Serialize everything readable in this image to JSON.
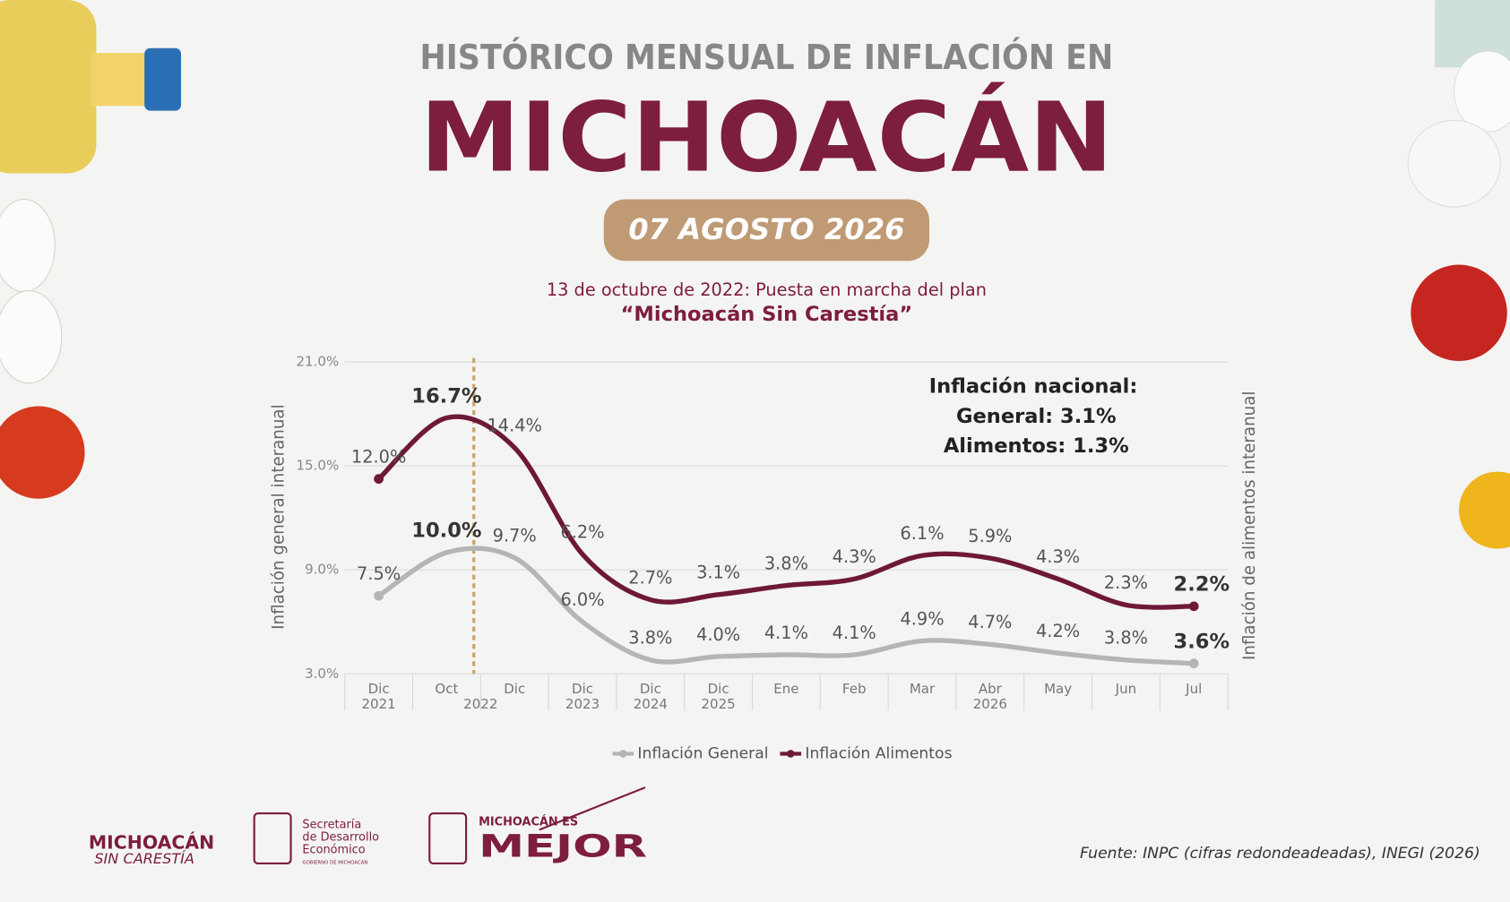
{
  "header": {
    "title": "HISTÓRICO MENSUAL DE INFLACIÓN EN",
    "state": "MICHOACÁN",
    "date": "07 AGOSTO 2026"
  },
  "chart_data": {
    "type": "line",
    "subtitle": "13 de octubre de 2022: Puesta en marcha del plan",
    "subtitle_plan": "“Michoacán Sin Carestía”",
    "ylabel": "Inflación general interanual",
    "y2label": "Inflación de alimentos interanual",
    "categories": [
      "Dic",
      "Oct",
      "Dic",
      "Dic",
      "Dic",
      "Dic",
      "Ene",
      "Feb",
      "Mar",
      "Abr",
      "May",
      "Jun",
      "Jul"
    ],
    "x_groups": [
      {
        "label": "2021",
        "categories": [
          0
        ]
      },
      {
        "label": "2022",
        "categories": [
          1,
          2
        ]
      },
      {
        "label": "2023",
        "categories": [
          3
        ]
      },
      {
        "label": "2024",
        "categories": [
          4
        ]
      },
      {
        "label": "2025",
        "categories": [
          5
        ]
      },
      {
        "label": "2026",
        "categories": [
          6,
          7,
          8,
          9,
          10,
          11,
          12
        ]
      }
    ],
    "ylim": [
      3,
      21
    ],
    "yticks": [
      {
        "value": 3,
        "label": "3.0%"
      },
      {
        "value": 9,
        "label": "9.0%"
      },
      {
        "value": 15,
        "label": "15.0%"
      },
      {
        "value": 21,
        "label": "21.0%"
      }
    ],
    "y2lim": [
      -3,
      21
    ],
    "grid": true,
    "legend": "bottom",
    "series": [
      {
        "name": "Inflación General",
        "color": "#b5b5b5",
        "values": [
          7.5,
          10.0,
          9.7,
          6.0,
          3.8,
          4.0,
          4.1,
          4.1,
          4.9,
          4.7,
          4.2,
          3.8,
          3.6
        ],
        "value_labels": [
          "7.5%",
          "10.0%",
          "9.7%",
          "6.0%",
          "3.8%",
          "4.0%",
          "4.1%",
          "4.1%",
          "4.9%",
          "4.7%",
          "4.2%",
          "3.8%",
          "3.6%"
        ]
      },
      {
        "name": "Inflación Alimentos",
        "color": "#6e1838",
        "axis": "y2",
        "values": [
          12.0,
          16.7,
          14.4,
          6.2,
          2.7,
          3.1,
          3.8,
          4.3,
          6.1,
          5.9,
          4.3,
          2.3,
          2.2
        ],
        "value_labels": [
          "12.0%",
          "16.7%",
          "14.4%",
          "6.2%",
          "2.7%",
          "3.1%",
          "3.8%",
          "4.3%",
          "6.1%",
          "5.9%",
          "4.3%",
          "2.3%",
          "2.2%"
        ]
      }
    ],
    "national_box": [
      "Inflación nacional:",
      "General: 3.1%",
      "Alimentos: 1.3%"
    ]
  },
  "footer": {
    "logo1": [
      "MICHOACÁN",
      "SIN CARESTÍA"
    ],
    "logo2": [
      "Secretaría",
      "de Desarrollo",
      "Económico",
      "GOBIERNO DE MICHOACÁN"
    ],
    "logo3": [
      "MICHOACÁN ES",
      "MEJOR"
    ],
    "source": "Fuente: INPC (cifras redondeadeadas), INEGI (2026)"
  }
}
